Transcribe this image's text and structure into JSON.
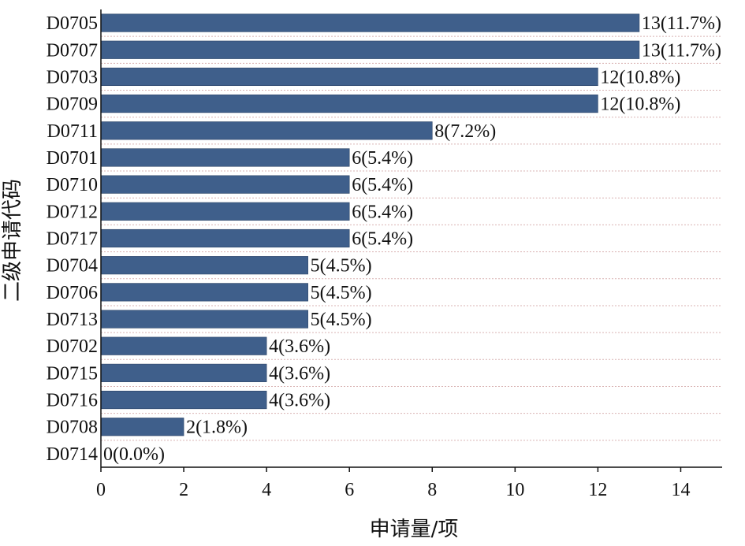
{
  "chart_data": {
    "type": "bar",
    "orientation": "horizontal",
    "categories": [
      "D0705",
      "D0707",
      "D0703",
      "D0709",
      "D0711",
      "D0701",
      "D0710",
      "D0712",
      "D0717",
      "D0704",
      "D0706",
      "D0713",
      "D0702",
      "D0715",
      "D0716",
      "D0708",
      "D0714"
    ],
    "values": [
      13,
      13,
      12,
      12,
      8,
      6,
      6,
      6,
      6,
      5,
      5,
      5,
      4,
      4,
      4,
      2,
      0
    ],
    "value_labels": [
      "13(11.7%)",
      "13(11.7%)",
      "12(10.8%)",
      "12(10.8%)",
      "8(7.2%)",
      "6(5.4%)",
      "6(5.4%)",
      "6(5.4%)",
      "6(5.4%)",
      "5(4.5%)",
      "5(4.5%)",
      "5(4.5%)",
      "4(3.6%)",
      "4(3.6%)",
      "4(3.6%)",
      "2(1.8%)",
      "0(0.0%)"
    ],
    "xlabel": "申请量/项",
    "ylabel": "二级申请代码",
    "xlim": [
      0,
      15
    ],
    "xticks": [
      0,
      2,
      4,
      6,
      8,
      10,
      12,
      14
    ],
    "grid": "horizontal dotted",
    "bar_color": "#3f5f8b"
  }
}
